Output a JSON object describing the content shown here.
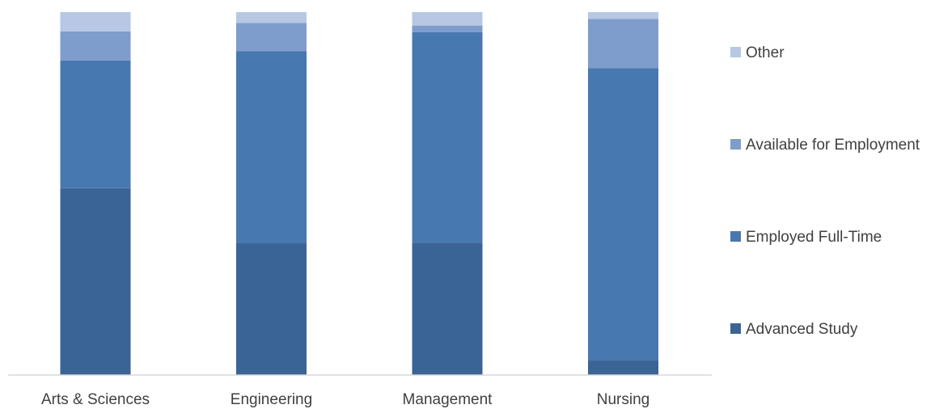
{
  "chart_data": {
    "type": "bar",
    "stacked": true,
    "normalized_percent": true,
    "categories": [
      "Arts & Sciences",
      "Engineering",
      "Management",
      "Nursing"
    ],
    "series": [
      {
        "name": "Advanced Study",
        "color": "#3B6496",
        "values": [
          51.5,
          36.3,
          36.5,
          4.0
        ]
      },
      {
        "name": "Employed Full-Time",
        "color": "#4878B0",
        "values": [
          35.2,
          52.9,
          58.0,
          80.6
        ]
      },
      {
        "name": "Available for Employment",
        "color": "#7E9DCC",
        "values": [
          8.0,
          7.8,
          1.8,
          13.5
        ]
      },
      {
        "name": "Other",
        "color": "#B7C7E4",
        "values": [
          5.3,
          3.0,
          3.7,
          1.9
        ]
      }
    ],
    "ylim": [
      0,
      100
    ],
    "grid": false,
    "legend_position": "right",
    "title": "",
    "xlabel": "",
    "ylabel": ""
  }
}
